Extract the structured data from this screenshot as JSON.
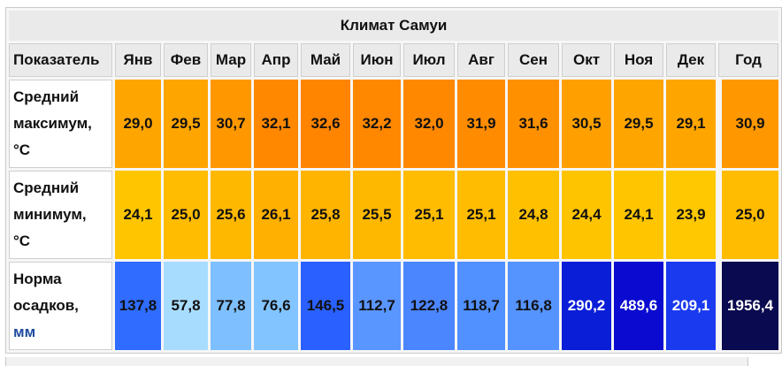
{
  "table": {
    "title": "Климат Самуи",
    "header": {
      "label": "Показатель",
      "months": [
        "Янв",
        "Фев",
        "Мар",
        "Апр",
        "Май",
        "Июн",
        "Июл",
        "Авг",
        "Сен",
        "Окт",
        "Ноя",
        "Дек"
      ],
      "year": "Год"
    },
    "rows": [
      {
        "label_lines": [
          "Средний",
          "максимум,",
          "°C"
        ],
        "values": [
          "29,0",
          "29,5",
          "30,7",
          "32,1",
          "32,6",
          "32,2",
          "32,0",
          "31,9",
          "31,6",
          "30,5",
          "29,5",
          "29,1"
        ],
        "year": "30,9",
        "colors": [
          "#ffa500",
          "#ffa500",
          "#ff9800",
          "#ff8800",
          "#ff8400",
          "#ff8800",
          "#ff8800",
          "#ff8c00",
          "#ff9000",
          "#ffa000",
          "#ffa500",
          "#ffa500"
        ],
        "year_color": "#ff9800"
      },
      {
        "label_lines": [
          "Средний",
          "минимум,",
          "°C"
        ],
        "values": [
          "24,1",
          "25,0",
          "25,6",
          "26,1",
          "25,8",
          "25,5",
          "25,1",
          "25,1",
          "24,8",
          "24,4",
          "24,1",
          "23,9"
        ],
        "year": "25,0",
        "colors": [
          "#ffc600",
          "#ffbc00",
          "#ffb800",
          "#ffb000",
          "#ffb400",
          "#ffb800",
          "#ffbc00",
          "#ffbc00",
          "#ffc000",
          "#ffc400",
          "#ffc600",
          "#ffc800"
        ],
        "year_color": "#ffbc00"
      },
      {
        "label_lines": [
          "Норма",
          "осадков,",
          "мм"
        ],
        "values": [
          "137,8",
          "57,8",
          "77,8",
          "76,6",
          "146,5",
          "112,7",
          "122,8",
          "118,7",
          "116,8",
          "290,2",
          "489,6",
          "209,1"
        ],
        "year": "1956,4",
        "colors": [
          "#2f6cff",
          "#a8dcff",
          "#7ec0ff",
          "#82c4ff",
          "#2a60ff",
          "#5a96ff",
          "#4c86ff",
          "#5190ff",
          "#5593ff",
          "#0a1ed8",
          "#0a0ad0",
          "#1a3af0"
        ],
        "year_color": "#0a0a50",
        "light_text_indices": [
          9,
          10,
          11
        ]
      }
    ]
  }
}
